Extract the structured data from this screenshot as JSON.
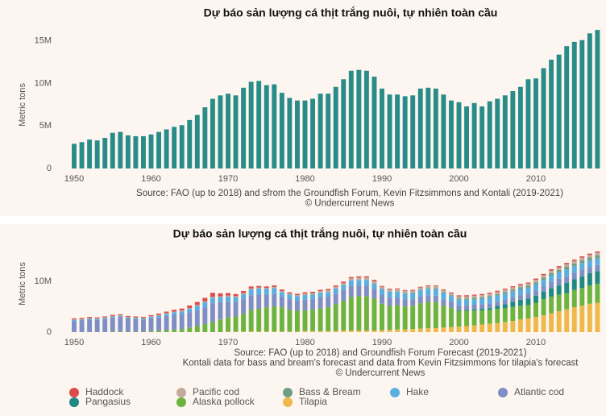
{
  "chart_data": [
    {
      "type": "bar",
      "title": "Dự báo sản lượng cá thịt trắng nuôi, tự nhiên toàn cầu",
      "ylabel": "Metric tons",
      "source": [
        "Source: FAO (up to 2018) and sfrom the Groundfish Forum, Kevin Fitzsimmons and Kontali (2019-2021)",
        "© Undercurrent News"
      ],
      "x": [
        1950,
        1951,
        1952,
        1953,
        1954,
        1955,
        1956,
        1957,
        1958,
        1959,
        1960,
        1961,
        1962,
        1963,
        1964,
        1965,
        1966,
        1967,
        1968,
        1969,
        1970,
        1971,
        1972,
        1973,
        1974,
        1975,
        1976,
        1977,
        1978,
        1979,
        1980,
        1981,
        1982,
        1983,
        1984,
        1985,
        1986,
        1987,
        1988,
        1989,
        1990,
        1991,
        1992,
        1993,
        1994,
        1995,
        1996,
        1997,
        1998,
        1999,
        2000,
        2001,
        2002,
        2003,
        2004,
        2005,
        2006,
        2007,
        2008,
        2009,
        2010,
        2011,
        2012,
        2013,
        2014,
        2015,
        2016,
        2017,
        2018
      ],
      "values": [
        2900000,
        3100000,
        3400000,
        3300000,
        3600000,
        4200000,
        4300000,
        3900000,
        3800000,
        3800000,
        4000000,
        4300000,
        4600000,
        4900000,
        5100000,
        5700000,
        6300000,
        7200000,
        8200000,
        8600000,
        8800000,
        8600000,
        9500000,
        10200000,
        10300000,
        9800000,
        9900000,
        8900000,
        8300000,
        8000000,
        8000000,
        8200000,
        8800000,
        8800000,
        9600000,
        10500000,
        11500000,
        11600000,
        11500000,
        10800000,
        9400000,
        8700000,
        8700000,
        8500000,
        8600000,
        9400000,
        9500000,
        9400000,
        8700000,
        8000000,
        7800000,
        7300000,
        7700000,
        7300000,
        7900000,
        8200000,
        8600000,
        9100000,
        9600000,
        10500000,
        10600000,
        11800000,
        12800000,
        13400000,
        14400000,
        14900000,
        15100000,
        15900000,
        16300000
      ],
      "color": "#2a8c88",
      "xlim": [
        1949,
        2019
      ],
      "xticks": [
        1950,
        1960,
        1970,
        1980,
        1990,
        2000,
        2010
      ],
      "ylim": [
        0,
        16500000
      ],
      "yticks": [
        0,
        {
          "value": 5000000,
          "label": "5M"
        },
        {
          "value": 10000000,
          "label": "10M"
        },
        {
          "value": 15000000,
          "label": "15M"
        }
      ],
      "grid": false
    },
    {
      "type": "stacked",
      "title": "Dự báo sản lượng cá thịt trắng nuôi, tự nhiên toàn cầu",
      "ylabel": "Metric tons",
      "source": [
        "Source: FAO (up to 2018) and Groundfish Forum Forecast (2019-2021)",
        "Kontali data for bass and bream's forecast and data from Kevin Fitzsimmons for tilapia's forecast",
        "© Undercurrent News"
      ],
      "x": [
        1950,
        1951,
        1952,
        1953,
        1954,
        1955,
        1956,
        1957,
        1958,
        1959,
        1960,
        1961,
        1962,
        1963,
        1964,
        1965,
        1966,
        1967,
        1968,
        1969,
        1970,
        1971,
        1972,
        1973,
        1974,
        1975,
        1976,
        1977,
        1978,
        1979,
        1980,
        1981,
        1982,
        1983,
        1984,
        1985,
        1986,
        1987,
        1988,
        1989,
        1990,
        1991,
        1992,
        1993,
        1994,
        1995,
        1996,
        1997,
        1998,
        1999,
        2000,
        2001,
        2002,
        2003,
        2004,
        2005,
        2006,
        2007,
        2008,
        2009,
        2010,
        2011,
        2012,
        2013,
        2014,
        2015,
        2016,
        2017,
        2018
      ],
      "series": [
        {
          "name": "Haddock",
          "color": "#dd4a4a",
          "values": [
            200000,
            200000,
            200000,
            200000,
            200000,
            200000,
            200000,
            200000,
            200000,
            200000,
            200000,
            250000,
            300000,
            350000,
            400000,
            500000,
            600000,
            700000,
            800000,
            600000,
            500000,
            400000,
            400000,
            400000,
            300000,
            300000,
            300000,
            300000,
            250000,
            250000,
            250000,
            250000,
            250000,
            250000,
            250000,
            250000,
            250000,
            250000,
            250000,
            250000,
            150000,
            150000,
            150000,
            150000,
            150000,
            150000,
            150000,
            150000,
            150000,
            150000,
            200000,
            200000,
            200000,
            200000,
            200000,
            200000,
            200000,
            200000,
            200000,
            200000,
            250000,
            250000,
            250000,
            250000,
            250000,
            250000,
            250000,
            250000,
            250000
          ]
        },
        {
          "name": "Pacific cod",
          "color": "#c2aa9c",
          "values": [
            100000,
            100000,
            100000,
            100000,
            100000,
            100000,
            100000,
            100000,
            100000,
            100000,
            150000,
            150000,
            150000,
            150000,
            150000,
            150000,
            150000,
            150000,
            150000,
            150000,
            200000,
            200000,
            200000,
            200000,
            200000,
            200000,
            200000,
            200000,
            200000,
            200000,
            300000,
            300000,
            300000,
            350000,
            350000,
            400000,
            400000,
            450000,
            450000,
            450000,
            400000,
            400000,
            400000,
            400000,
            400000,
            400000,
            400000,
            400000,
            400000,
            400000,
            450000,
            450000,
            450000,
            450000,
            450000,
            450000,
            450000,
            450000,
            450000,
            450000,
            500000,
            500000,
            500000,
            500000,
            500000,
            500000,
            500000,
            500000,
            500000
          ]
        },
        {
          "name": "Bass & Bream",
          "color": "#6f9e83",
          "values": [
            0,
            0,
            0,
            0,
            0,
            0,
            0,
            0,
            0,
            0,
            0,
            0,
            0,
            0,
            0,
            0,
            0,
            0,
            0,
            0,
            0,
            0,
            0,
            0,
            0,
            0,
            0,
            0,
            0,
            0,
            0,
            0,
            0,
            0,
            0,
            0,
            0,
            0,
            0,
            0,
            50000,
            60000,
            70000,
            80000,
            90000,
            100000,
            120000,
            140000,
            160000,
            180000,
            200000,
            220000,
            240000,
            260000,
            280000,
            300000,
            320000,
            340000,
            360000,
            380000,
            400000,
            420000,
            440000,
            460000,
            500000,
            540000,
            580000,
            620000,
            660000
          ]
        },
        {
          "name": "Hake",
          "color": "#5aaee0",
          "values": [
            200000,
            200000,
            200000,
            200000,
            200000,
            200000,
            200000,
            200000,
            200000,
            200000,
            300000,
            350000,
            400000,
            500000,
            600000,
            700000,
            900000,
            1000000,
            1100000,
            1000000,
            1000000,
            900000,
            1000000,
            1200000,
            1200000,
            1100000,
            1200000,
            900000,
            900000,
            900000,
            900000,
            900000,
            900000,
            900000,
            1000000,
            1000000,
            1100000,
            1100000,
            1100000,
            1100000,
            1100000,
            1200000,
            1200000,
            1200000,
            1200000,
            1300000,
            1300000,
            1300000,
            1200000,
            1100000,
            1100000,
            1100000,
            1100000,
            1100000,
            1200000,
            1200000,
            1300000,
            1200000,
            1200000,
            1200000,
            1200000,
            1200000,
            1300000,
            1300000,
            1400000,
            1300000,
            1300000,
            1300000,
            1300000
          ]
        },
        {
          "name": "Atlantic cod",
          "color": "#7d8fc4",
          "values": [
            2200000,
            2300000,
            2500000,
            2400000,
            2600000,
            2800000,
            2900000,
            2600000,
            2500000,
            2400000,
            2500000,
            2600000,
            2800000,
            2900000,
            2900000,
            3000000,
            3100000,
            3300000,
            3700000,
            3400000,
            3100000,
            2900000,
            2900000,
            2800000,
            2800000,
            2500000,
            2400000,
            2100000,
            2100000,
            2000000,
            2100000,
            2100000,
            2200000,
            2100000,
            2100000,
            2200000,
            2200000,
            2100000,
            2100000,
            1900000,
            1800000,
            1600000,
            1500000,
            1400000,
            1300000,
            1300000,
            1300000,
            1300000,
            1300000,
            1200000,
            1000000,
            950000,
            950000,
            900000,
            900000,
            800000,
            800000,
            850000,
            900000,
            950000,
            1000000,
            1100000,
            1200000,
            1300000,
            1300000,
            1300000,
            1300000,
            1200000,
            1200000
          ]
        },
        {
          "name": "Pangasius",
          "color": "#1f8a82",
          "values": [
            0,
            0,
            0,
            0,
            0,
            0,
            0,
            0,
            0,
            0,
            0,
            0,
            0,
            0,
            0,
            0,
            0,
            0,
            0,
            0,
            0,
            0,
            0,
            0,
            0,
            0,
            0,
            0,
            0,
            0,
            0,
            0,
            0,
            0,
            0,
            0,
            0,
            0,
            0,
            0,
            0,
            0,
            0,
            0,
            0,
            0,
            0,
            0,
            0,
            0,
            100000,
            150000,
            200000,
            300000,
            400000,
            600000,
            800000,
            1000000,
            1200000,
            1300000,
            1400000,
            1500000,
            1700000,
            1800000,
            2000000,
            2100000,
            2300000,
            2400000,
            2500000
          ]
        },
        {
          "name": "Alaska pollock",
          "color": "#6db33f",
          "values": [
            0,
            0,
            0,
            0,
            0,
            100000,
            100000,
            100000,
            100000,
            100000,
            200000,
            300000,
            400000,
            500000,
            600000,
            900000,
            1200000,
            1600000,
            2000000,
            2500000,
            2800000,
            3000000,
            3500000,
            4300000,
            4500000,
            4800000,
            5000000,
            4800000,
            4300000,
            4100000,
            4100000,
            4200000,
            4500000,
            4700000,
            5300000,
            5800000,
            6600000,
            6800000,
            6800000,
            6300000,
            5200000,
            4700000,
            4800000,
            4500000,
            4600000,
            5000000,
            5200000,
            5100000,
            4300000,
            3800000,
            3100000,
            3000000,
            2900000,
            2800000,
            2700000,
            2800000,
            2700000,
            2800000,
            2700000,
            2600000,
            2800000,
            3200000,
            3300000,
            3300000,
            3200000,
            3400000,
            3500000,
            3600000,
            3700000
          ]
        },
        {
          "name": "Tilapia",
          "color": "#f0b84a",
          "values": [
            0,
            0,
            0,
            0,
            0,
            0,
            0,
            0,
            0,
            0,
            0,
            0,
            0,
            0,
            0,
            0,
            0,
            0,
            0,
            0,
            100000,
            100000,
            100000,
            100000,
            100000,
            100000,
            100000,
            100000,
            100000,
            100000,
            200000,
            200000,
            200000,
            200000,
            200000,
            300000,
            300000,
            300000,
            300000,
            300000,
            400000,
            450000,
            500000,
            550000,
            600000,
            700000,
            750000,
            800000,
            900000,
            1000000,
            1100000,
            1200000,
            1350000,
            1500000,
            1650000,
            1800000,
            2000000,
            2200000,
            2500000,
            2700000,
            3000000,
            3300000,
            3700000,
            4100000,
            4500000,
            4900000,
            5200000,
            5600000,
            5800000
          ]
        }
      ],
      "xlim": [
        1949,
        2019
      ],
      "xticks": [
        1950,
        1960,
        1970,
        1980,
        1990,
        2000,
        2010
      ],
      "ylim": [
        0,
        17000000
      ],
      "yticks": [
        0,
        {
          "value": 10000000,
          "label": "10M"
        }
      ],
      "grid": false
    }
  ]
}
